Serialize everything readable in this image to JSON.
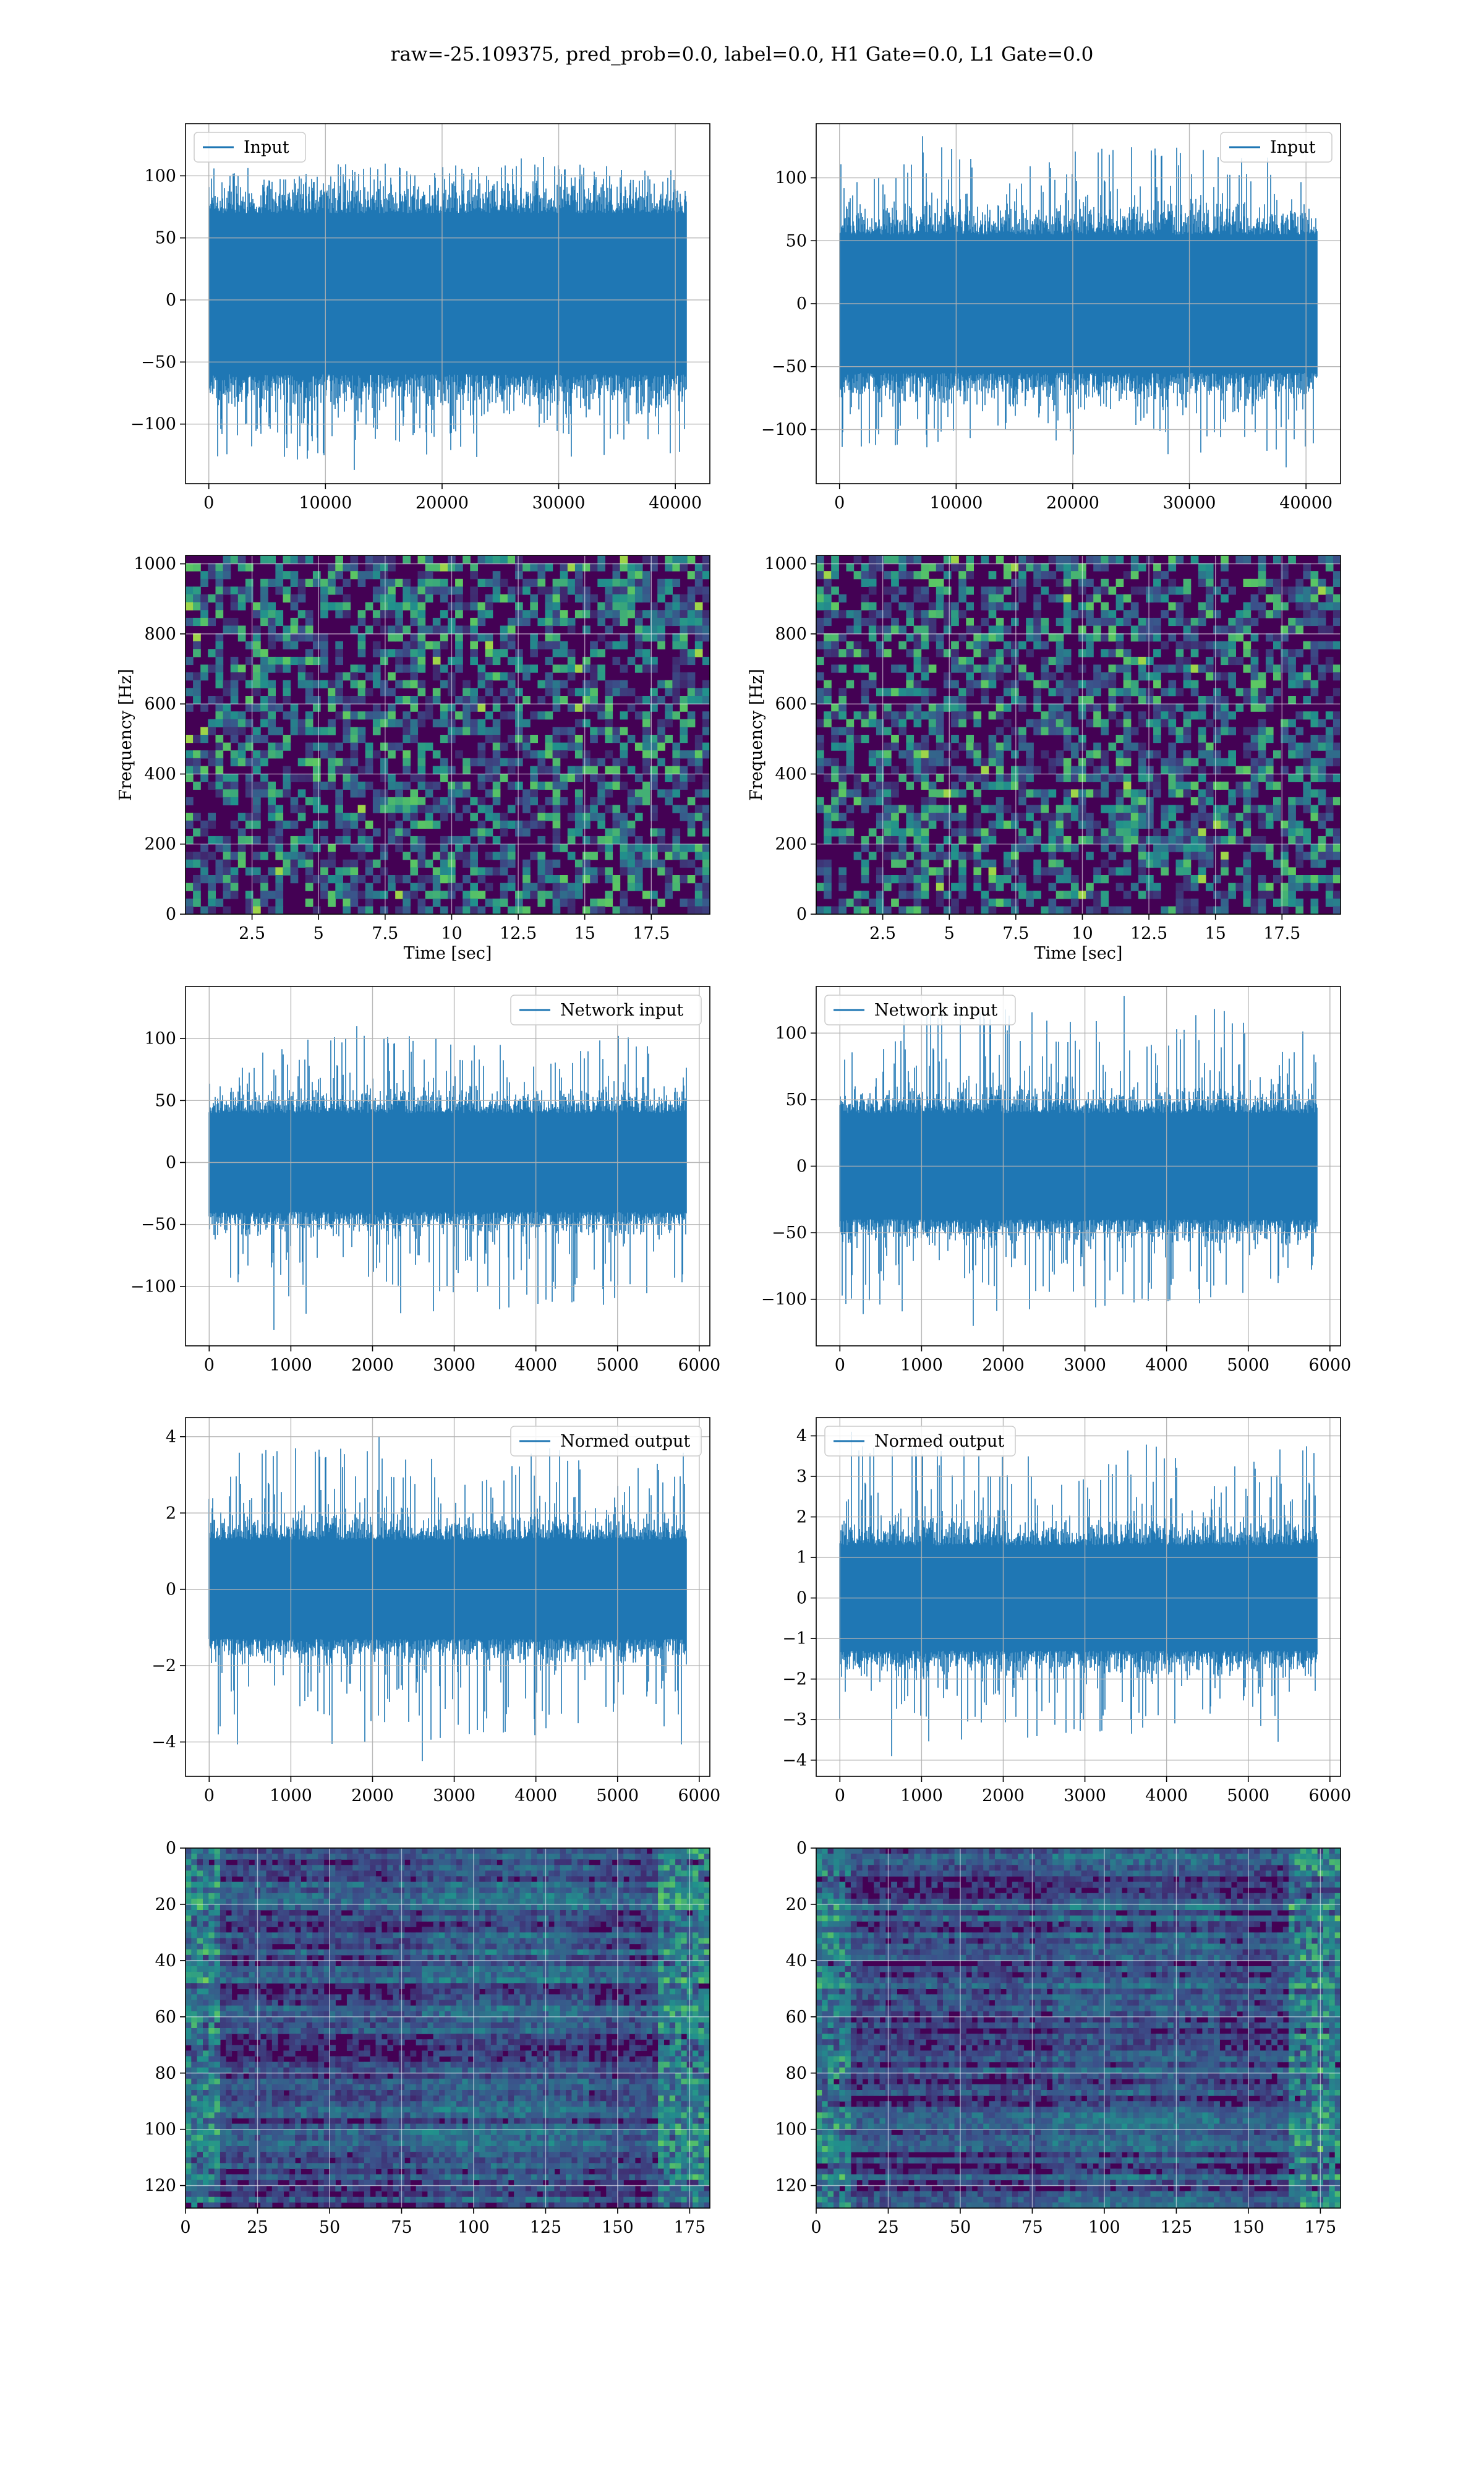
{
  "suptitle": "raw=-25.109375, pred_prob=0.0, label=0.0, H1 Gate=0.0, L1 Gate=0.0",
  "colors": {
    "line": "#1f77b4",
    "grid": "#b0b0b0",
    "viridis_dark": "#440154"
  },
  "chart_data": [
    {
      "type": "line",
      "row": 1,
      "col": 1,
      "legend": "Input",
      "legend_loc": "upper left",
      "xlim": [
        -2000,
        42960
      ],
      "ylim": [
        -148,
        142
      ],
      "xticks": [
        0,
        10000,
        20000,
        30000,
        40000
      ],
      "yticks": [
        -100,
        -50,
        0,
        50,
        100
      ],
      "series": [
        {
          "name": "Input",
          "n_points": 40960,
          "x_range": [
            0,
            40960
          ],
          "core_band": [
            -60,
            70
          ],
          "extremes": [
            -137,
            114
          ]
        }
      ]
    },
    {
      "type": "line",
      "row": 1,
      "col": 2,
      "legend": "Input",
      "legend_loc": "upper right",
      "xlim": [
        -2000,
        42960
      ],
      "ylim": [
        -143,
        143
      ],
      "xticks": [
        0,
        10000,
        20000,
        30000,
        40000
      ],
      "yticks": [
        -100,
        -50,
        0,
        50,
        100
      ],
      "series": [
        {
          "name": "Input",
          "n_points": 40960,
          "x_range": [
            0,
            40960
          ],
          "core_band": [
            -55,
            55
          ],
          "extremes": [
            -130,
            133
          ]
        }
      ]
    },
    {
      "type": "heatmap",
      "row": 2,
      "col": 1,
      "colormap": "viridis",
      "xlabel": "Time [sec]",
      "ylabel": "Frequency [Hz]",
      "xlim": [
        0,
        19.7
      ],
      "ylim": [
        0,
        1024
      ],
      "xticks": [
        2.5,
        5.0,
        7.5,
        10.0,
        12.5,
        15.0,
        17.5
      ],
      "yticks": [
        0,
        200,
        400,
        600,
        800,
        1000
      ]
    },
    {
      "type": "heatmap",
      "row": 2,
      "col": 2,
      "colormap": "viridis",
      "xlabel": "Time [sec]",
      "ylabel": "Frequency [Hz]",
      "xlim": [
        0,
        19.7
      ],
      "ylim": [
        0,
        1024
      ],
      "xticks": [
        2.5,
        5.0,
        7.5,
        10.0,
        12.5,
        15.0,
        17.5
      ],
      "yticks": [
        0,
        200,
        400,
        600,
        800,
        1000
      ]
    },
    {
      "type": "line",
      "row": 3,
      "col": 1,
      "legend": "Network input",
      "legend_loc": "upper right",
      "xlim": [
        -290,
        6130
      ],
      "ylim": [
        -148,
        142
      ],
      "xticks": [
        0,
        1000,
        2000,
        3000,
        4000,
        5000,
        6000
      ],
      "yticks": [
        -100,
        -50,
        0,
        50,
        100
      ],
      "series": [
        {
          "name": "Network input",
          "n_points": 5840,
          "x_range": [
            0,
            5840
          ],
          "core_band": [
            -40,
            40
          ],
          "extremes": [
            -135,
            110
          ]
        }
      ]
    },
    {
      "type": "line",
      "row": 3,
      "col": 2,
      "legend": "Network input",
      "legend_loc": "upper left",
      "xlim": [
        -290,
        6130
      ],
      "ylim": [
        -135,
        135
      ],
      "xticks": [
        0,
        1000,
        2000,
        3000,
        4000,
        5000,
        6000
      ],
      "yticks": [
        -100,
        -50,
        0,
        50,
        100
      ],
      "series": [
        {
          "name": "Network input",
          "n_points": 5840,
          "x_range": [
            0,
            5840
          ],
          "core_band": [
            -40,
            40
          ],
          "extremes": [
            -120,
            128
          ]
        }
      ]
    },
    {
      "type": "line",
      "row": 4,
      "col": 1,
      "legend": "Normed output",
      "legend_loc": "upper right",
      "xlim": [
        -290,
        6130
      ],
      "ylim": [
        -4.9,
        4.5
      ],
      "xticks": [
        0,
        1000,
        2000,
        3000,
        4000,
        5000,
        6000
      ],
      "yticks": [
        -4,
        -2,
        0,
        2,
        4
      ],
      "series": [
        {
          "name": "Normed output",
          "n_points": 5840,
          "x_range": [
            0,
            5840
          ],
          "core_band": [
            -1.3,
            1.3
          ],
          "extremes": [
            -4.5,
            4.0
          ]
        }
      ]
    },
    {
      "type": "line",
      "row": 4,
      "col": 2,
      "legend": "Normed output",
      "legend_loc": "upper left",
      "xlim": [
        -290,
        6130
      ],
      "ylim": [
        -4.4,
        4.45
      ],
      "xticks": [
        0,
        1000,
        2000,
        3000,
        4000,
        5000,
        6000
      ],
      "yticks": [
        -4,
        -3,
        -2,
        -1,
        0,
        1,
        2,
        3,
        4
      ],
      "series": [
        {
          "name": "Normed output",
          "n_points": 5840,
          "x_range": [
            0,
            5840
          ],
          "core_band": [
            -1.3,
            1.3
          ],
          "extremes": [
            -3.9,
            4.1
          ]
        }
      ]
    },
    {
      "type": "heatmap",
      "row": 5,
      "col": 1,
      "colormap": "viridis",
      "inverted_y": true,
      "xlim": [
        0,
        182
      ],
      "ylim": [
        0,
        128
      ],
      "xticks": [
        0,
        25,
        50,
        75,
        100,
        125,
        150,
        175
      ],
      "yticks": [
        0,
        20,
        40,
        60,
        80,
        100,
        120
      ]
    },
    {
      "type": "heatmap",
      "row": 5,
      "col": 2,
      "colormap": "viridis",
      "inverted_y": true,
      "xlim": [
        0,
        182
      ],
      "ylim": [
        0,
        128
      ],
      "xticks": [
        0,
        25,
        50,
        75,
        100,
        125,
        150,
        175
      ],
      "yticks": [
        0,
        20,
        40,
        60,
        80,
        100,
        120
      ]
    }
  ]
}
